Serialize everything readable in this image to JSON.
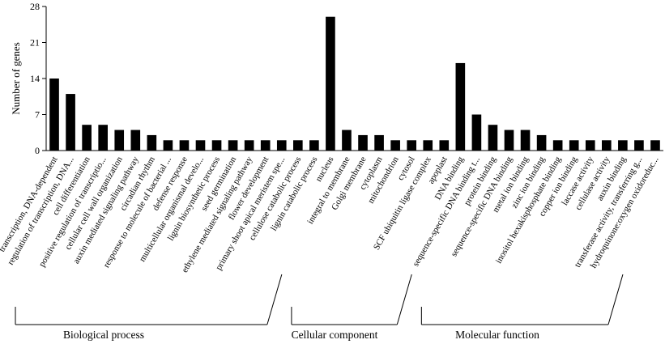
{
  "chart_data": {
    "type": "bar",
    "ylabel": "Number of genes",
    "ylim": [
      0,
      28
    ],
    "yticks": [
      0,
      7,
      14,
      21,
      28
    ],
    "categories": [
      "transcription, DNA-dependent",
      "regulation of transcription, DNA...",
      "cell differentiation",
      "positive regulation of transcriptio...",
      "cellular cell wall organization",
      "auxin mediated signaling pathway",
      "circadian rhythm",
      "response to molecule of bacterial ...",
      "defense response",
      "multicellular organismal develo...",
      "lignin biosynthetic process",
      "seed germination",
      "ethylene mediated signaling pathway",
      "flower development",
      "primary shoot apical meristem spe...",
      "cellulose catabolic process",
      "lignin catabolic process",
      "nucleus",
      "integral to membrane",
      "Golgi membrane",
      "cytoplasm",
      "mitochondrion",
      "cytosol",
      "SCF ubiquitin ligase complex",
      "apoplast",
      "DNA binding",
      "sequence-specific DNA binding t...",
      "protein binding",
      "sequence-specific DNA binding",
      "metal ion binding",
      "zinc ion binding",
      "inositol hexakisphosphate binding",
      "copper ion binding",
      "laccase activity",
      "cellulase activity",
      "auxin binding",
      "transferase activity, transferring g...",
      "hydroquinone:oxygen oxidoreduc..."
    ],
    "values": [
      14,
      11,
      5,
      5,
      4,
      4,
      3,
      2,
      2,
      2,
      2,
      2,
      2,
      2,
      2,
      2,
      2,
      26,
      4,
      3,
      3,
      2,
      2,
      2,
      2,
      17,
      7,
      5,
      4,
      4,
      3,
      2,
      2,
      2,
      2,
      2,
      2,
      2
    ],
    "bar_color": "#000000",
    "grid": false,
    "groups": [
      {
        "label": "Biological process",
        "start": 0,
        "end": 16
      },
      {
        "label": "Cellular component",
        "start": 17,
        "end": 24
      },
      {
        "label": "Molecular function",
        "start": 25,
        "end": 37
      }
    ]
  }
}
